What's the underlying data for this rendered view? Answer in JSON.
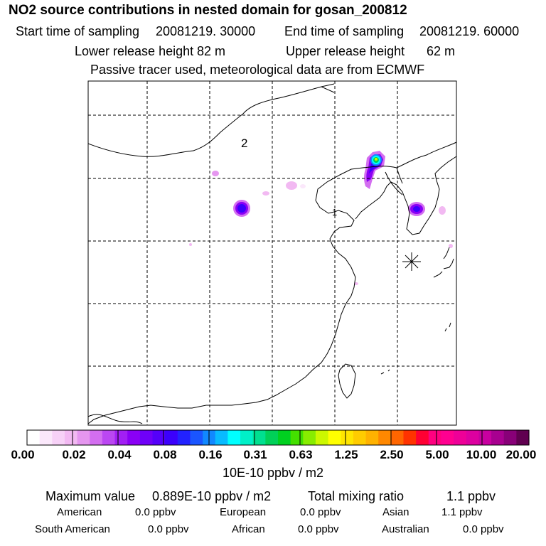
{
  "header": {
    "title": "NO2 source contributions in nested domain for gosan_200812",
    "start_label": "Start time of sampling",
    "start_value": "20081219. 30000",
    "end_label": "End time of sampling",
    "end_value": "20081219. 60000",
    "lower_label": "Lower release height",
    "lower_value": "82 m",
    "upper_label": "Upper release height",
    "upper_value": "62 m",
    "note": "Passive tracer used, meteorological data are from ECMWF"
  },
  "map": {
    "label_2": "2",
    "label_1": "1",
    "receptor_symbol": "asterisk"
  },
  "colorbar": {
    "ticks": [
      "0.00",
      "0.02",
      "0.04",
      "0.08",
      "0.16",
      "0.31",
      "0.63",
      "1.25",
      "2.50",
      "5.00",
      "10.00",
      "20.00"
    ],
    "colors": [
      "#ffffff",
      "#fbe8fb",
      "#f7d1f7",
      "#f2b9f2",
      "#e596ef",
      "#d36ef0",
      "#bb47f2",
      "#a21ff4",
      "#8a00f5",
      "#6f00f8",
      "#5500fa",
      "#3b00fc",
      "#2222ff",
      "#1a55ff",
      "#1188ff",
      "#08bbff",
      "#00ffff",
      "#00f0c8",
      "#00e090",
      "#00d058",
      "#00d020",
      "#44e000",
      "#88ec00",
      "#ccf800",
      "#ffff00",
      "#ffe600",
      "#ffcc00",
      "#ffb200",
      "#ff8800",
      "#ff6600",
      "#ff3300",
      "#ff0033",
      "#ff0080",
      "#ff0090",
      "#ee0098",
      "#dd00a0",
      "#c800a0",
      "#a80090",
      "#880078",
      "#600050"
    ],
    "unit": "10E-10 ppbv / m2"
  },
  "stats": {
    "max_label": "Maximum value",
    "max_value": "0.889E-10 ppbv / m2",
    "total_label": "Total mixing ratio",
    "total_value": "1.1 ppbv",
    "american_label": "American",
    "american_value": "0.0 ppbv",
    "european_label": "European",
    "european_value": "0.0 ppbv",
    "asian_label": "Asian",
    "asian_value": "1.1 ppbv",
    "south_american_label": "South American",
    "south_american_value": "0.0 ppbv",
    "african_label": "African",
    "african_value": "0.0 ppbv",
    "australian_label": "Australian",
    "australian_value": "0.0 ppbv"
  }
}
